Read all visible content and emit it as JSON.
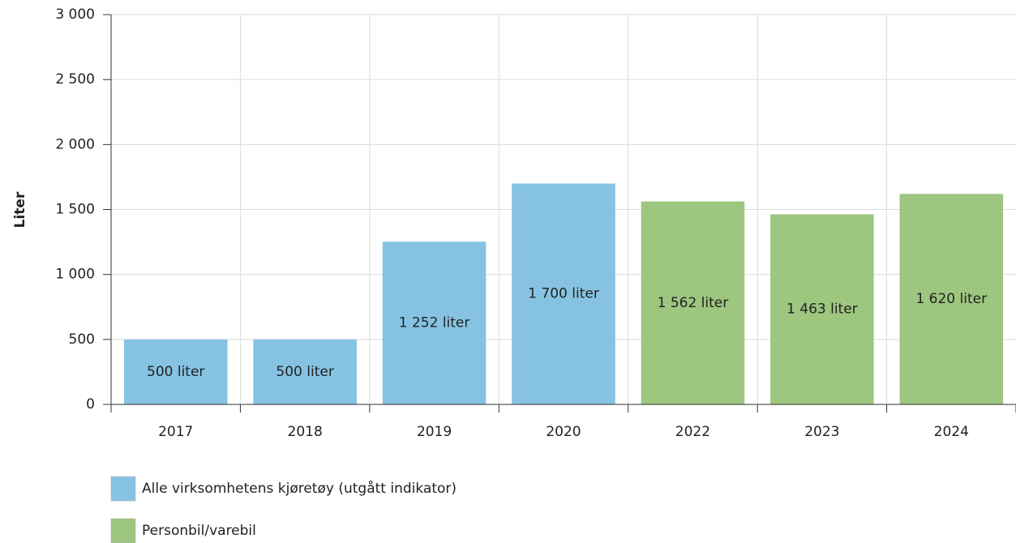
{
  "chart_data": {
    "type": "bar",
    "y_label": "Liter",
    "categories": [
      "2017",
      "2018",
      "2019",
      "2020",
      "2022",
      "2023",
      "2024"
    ],
    "series": [
      {
        "name": "Alle virksomhetens kjøretøy (utgått indikator)",
        "color": "#86c3e3",
        "values": [
          500,
          500,
          1252,
          1700,
          null,
          null,
          null
        ],
        "value_labels": [
          "500 liter",
          "500 liter",
          "1 252 liter",
          "1 700 liter",
          null,
          null,
          null
        ]
      },
      {
        "name": "Personbil/varebil",
        "color": "#9dc67f",
        "values": [
          null,
          null,
          null,
          null,
          1562,
          1463,
          1620
        ],
        "value_labels": [
          null,
          null,
          null,
          null,
          "1 562 liter",
          "1 463 liter",
          "1 620 liter"
        ]
      }
    ],
    "ylim": [
      0,
      3000
    ],
    "yticks": [
      0,
      500,
      {
        "value": 1000,
        "label": "1 000"
      },
      {
        "value": 1500,
        "label": "1 500"
      },
      {
        "value": 2000,
        "label": "2 000"
      },
      {
        "value": 2500,
        "label": "2 500"
      },
      {
        "value": 3000,
        "label": "3 000"
      }
    ],
    "grid": true,
    "legend": "bottom"
  }
}
